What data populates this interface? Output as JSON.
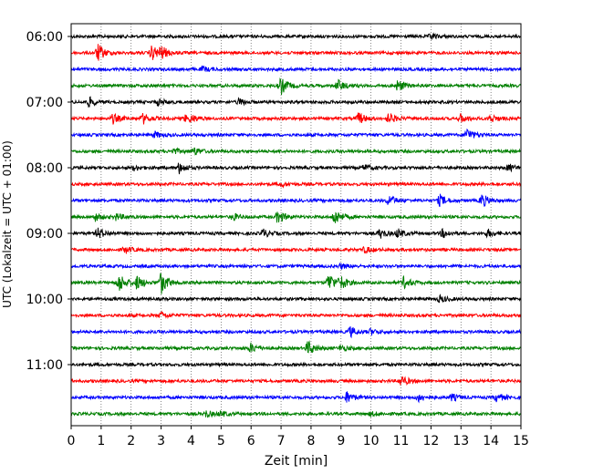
{
  "chart_data": {
    "type": "line",
    "title": "",
    "xlabel": "Zeit  [min]",
    "ylabel": "UTC (Lokalzeit = UTC + 01:00)",
    "xlim": [
      0,
      15
    ],
    "x_ticks": [
      "0",
      "1",
      "2",
      "3",
      "4",
      "5",
      "6",
      "7",
      "8",
      "9",
      "10",
      "11",
      "12",
      "13",
      "14",
      "15"
    ],
    "y_ticks": [
      {
        "label": "06:00",
        "trace": 0
      },
      {
        "label": "07:00",
        "trace": 4
      },
      {
        "label": "08:00",
        "trace": 8
      },
      {
        "label": "09:00",
        "trace": 12
      },
      {
        "label": "10:00",
        "trace": 16
      },
      {
        "label": "11:00",
        "trace": 20
      }
    ],
    "grid": "vertical dotted lines",
    "colors": [
      "#000000",
      "#ff0000",
      "#0000ff",
      "#008000"
    ],
    "traces": [
      {
        "start": "06:00",
        "color": "#000000",
        "events": [
          [
            12.0,
            0.25
          ]
        ]
      },
      {
        "start": "06:15",
        "color": "#ff0000",
        "events": [
          [
            0.9,
            0.9
          ],
          [
            2.7,
            0.8
          ],
          [
            3.0,
            0.6
          ]
        ]
      },
      {
        "start": "06:30",
        "color": "#0000ff",
        "events": [
          [
            4.4,
            0.25
          ]
        ]
      },
      {
        "start": "06:45",
        "color": "#008000",
        "events": [
          [
            7.0,
            0.9
          ],
          [
            8.9,
            0.6
          ],
          [
            10.9,
            0.6
          ]
        ]
      },
      {
        "start": "07:00",
        "color": "#000000",
        "events": [
          [
            0.6,
            0.5
          ],
          [
            2.9,
            0.35
          ],
          [
            5.6,
            0.35
          ]
        ]
      },
      {
        "start": "07:15",
        "color": "#ff0000",
        "events": [
          [
            1.4,
            0.5
          ],
          [
            2.4,
            0.55
          ],
          [
            3.8,
            0.3
          ],
          [
            4.0,
            0.3
          ],
          [
            9.6,
            0.6
          ],
          [
            10.6,
            0.55
          ],
          [
            13.0,
            0.45
          ],
          [
            14.0,
            0.4
          ]
        ]
      },
      {
        "start": "07:30",
        "color": "#0000ff",
        "events": [
          [
            2.8,
            0.3
          ],
          [
            13.2,
            0.7
          ]
        ]
      },
      {
        "start": "07:45",
        "color": "#008000",
        "events": [
          [
            3.4,
            0.3
          ],
          [
            4.1,
            0.4
          ]
        ]
      },
      {
        "start": "08:00",
        "color": "#000000",
        "events": [
          [
            2.1,
            0.25
          ],
          [
            3.6,
            0.6
          ],
          [
            9.8,
            0.35
          ],
          [
            14.6,
            0.35
          ]
        ]
      },
      {
        "start": "08:15",
        "color": "#ff0000",
        "events": [
          [
            7.0,
            0.25
          ]
        ]
      },
      {
        "start": "08:30",
        "color": "#0000ff",
        "events": [
          [
            10.6,
            0.6
          ],
          [
            12.3,
            0.6
          ],
          [
            13.7,
            0.7
          ]
        ]
      },
      {
        "start": "08:45",
        "color": "#008000",
        "events": [
          [
            0.8,
            0.4
          ],
          [
            1.5,
            0.35
          ],
          [
            5.4,
            0.35
          ],
          [
            6.9,
            0.7
          ],
          [
            8.8,
            0.85
          ]
        ]
      },
      {
        "start": "09:00",
        "color": "#000000",
        "events": [
          [
            0.9,
            0.55
          ],
          [
            6.4,
            0.45
          ],
          [
            10.3,
            0.5
          ],
          [
            10.9,
            0.45
          ],
          [
            12.4,
            0.45
          ],
          [
            13.9,
            0.4
          ]
        ]
      },
      {
        "start": "09:15",
        "color": "#ff0000",
        "events": [
          [
            1.8,
            0.35
          ],
          [
            9.8,
            0.3
          ]
        ]
      },
      {
        "start": "09:30",
        "color": "#0000ff",
        "events": [
          [
            9.0,
            0.25
          ]
        ]
      },
      {
        "start": "09:45",
        "color": "#008000",
        "events": [
          [
            1.6,
            1.0
          ],
          [
            2.2,
            0.7
          ],
          [
            3.0,
            1.2
          ],
          [
            8.6,
            1.0
          ],
          [
            9.0,
            0.6
          ],
          [
            11.1,
            0.6
          ]
        ]
      },
      {
        "start": "10:00",
        "color": "#000000",
        "events": [
          [
            12.3,
            0.35
          ]
        ]
      },
      {
        "start": "10:15",
        "color": "#ff0000",
        "events": [
          [
            3.0,
            0.3
          ]
        ]
      },
      {
        "start": "10:30",
        "color": "#0000ff",
        "events": [
          [
            9.3,
            0.55
          ],
          [
            10.0,
            0.3
          ]
        ]
      },
      {
        "start": "10:45",
        "color": "#008000",
        "events": [
          [
            6.0,
            0.5
          ],
          [
            7.9,
            0.75
          ],
          [
            9.0,
            0.3
          ]
        ]
      },
      {
        "start": "11:00",
        "color": "#000000",
        "events": []
      },
      {
        "start": "11:15",
        "color": "#ff0000",
        "events": [
          [
            11.0,
            0.6
          ]
        ]
      },
      {
        "start": "11:30",
        "color": "#0000ff",
        "events": [
          [
            9.2,
            0.6
          ],
          [
            11.6,
            0.45
          ],
          [
            12.7,
            0.35
          ],
          [
            14.2,
            0.45
          ]
        ]
      },
      {
        "start": "11:45",
        "color": "#008000",
        "events": [
          [
            4.5,
            0.35
          ],
          [
            5.0,
            0.25
          ],
          [
            10.0,
            0.2
          ]
        ]
      }
    ]
  }
}
